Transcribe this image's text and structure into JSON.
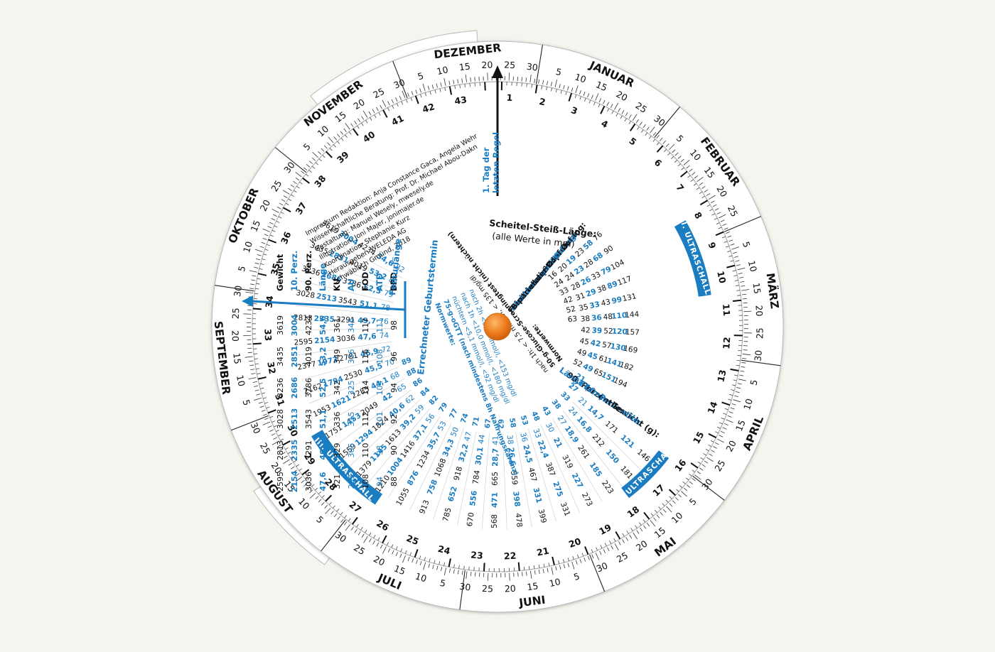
{
  "months": [
    {
      "name": "JANUAR",
      "days": [
        "5",
        "10",
        "15",
        "20",
        "25",
        "30"
      ]
    },
    {
      "name": "FEBRUAR",
      "days": [
        "5",
        "10",
        "15",
        "20",
        "25"
      ]
    },
    {
      "name": "MÄRZ",
      "days": [
        "5",
        "10",
        "15",
        "20",
        "25",
        "30"
      ]
    },
    {
      "name": "APRIL",
      "days": [
        "5",
        "10",
        "15",
        "20",
        "25",
        "30"
      ]
    },
    {
      "name": "MAI",
      "days": [
        "5",
        "10",
        "15",
        "20",
        "25",
        "30"
      ]
    },
    {
      "name": "JUNI",
      "days": [
        "5",
        "10",
        "15",
        "20",
        "25",
        "30"
      ]
    },
    {
      "name": "JULI",
      "days": [
        "5",
        "10",
        "15",
        "20",
        "25",
        "30"
      ]
    },
    {
      "name": "AUGUST",
      "days": [
        "5",
        "10",
        "15",
        "20",
        "25",
        "30"
      ]
    },
    {
      "name": "SEPTEMBER",
      "days": [
        "5",
        "10",
        "15",
        "20",
        "25",
        "30"
      ]
    },
    {
      "name": "OKTOBER",
      "days": [
        "5",
        "10",
        "15",
        "20",
        "25",
        "30"
      ]
    },
    {
      "name": "NOVEMBER",
      "days": [
        "5",
        "10",
        "15",
        "20",
        "25",
        "30"
      ]
    },
    {
      "name": "DEZEMBER",
      "days": [
        "5",
        "10",
        "15",
        "20",
        "25",
        "30"
      ]
    }
  ],
  "weeks": [
    "1",
    "2",
    "3",
    "4",
    "5",
    "6",
    "7",
    "8",
    "9",
    "10",
    "11",
    "12",
    "13",
    "14",
    "15",
    "16",
    "17",
    "18",
    "19",
    "20",
    "21",
    "22",
    "23",
    "24",
    "25",
    "26",
    "27",
    "28",
    "29",
    "30",
    "31",
    "32",
    "33",
    "34",
    "35",
    "36",
    "37",
    "38",
    "39",
    "40",
    "41",
    "42",
    "43"
  ],
  "ultrasound": [
    "I. ULTRASCHALL",
    "II. ULTRASCHALL",
    "III. ULTRASCHALL"
  ],
  "pointer_label": [
    "1. Tag der",
    "letzten Regel"
  ],
  "due_label": "Errechneter Geburtstermin",
  "femur_label": "Femurlänge",
  "impressum": [
    "Impressum Redaktion: Anja Constance Gaca, Angela Wehr",
    "Wissenschaftliche Beratung: Prof. Dr. Michael Abou-Dakn",
    "Gestaltung: Manuel Wesely, mwesely.de",
    "Illustration: Joni Majer, jonimajer.de",
    "Koordination: Stephanie Kurz",
    "Herausgeber: WELEDA AG",
    "Schwäbisch Gmünd, 2018"
  ],
  "ssl_title": "Scheitel-Steiß-Länge:",
  "ssl_sub": "(alle Werte in mm)",
  "ssl_values": [
    "9",
    "16",
    "24",
    "33",
    "42",
    "52",
    "63"
  ],
  "upper_labels": [
    {
      "text": "Kopfumfang:",
      "color": "#111111"
    },
    {
      "text": "Abdomen-Umfang:",
      "color": "#1a7cc1"
    },
    {
      "text": "Fronto-okzipitaler Ø:",
      "color": "#111111"
    },
    {
      "text": "Abdomen quer Ø:",
      "color": "#1a7cc1"
    },
    {
      "text": "Biparietaler Ø:",
      "color": "#111111"
    }
  ],
  "upper_cols": [
    [
      "76",
      "58",
      "23",
      "19",
      "20"
    ],
    [
      "90",
      "68",
      "28",
      "23",
      "24"
    ],
    [
      "104",
      "79",
      "33",
      "26",
      "28"
    ],
    [
      "117",
      "89",
      "38",
      "29",
      "31"
    ],
    [
      "131",
      "99",
      "43",
      "33",
      "35"
    ],
    [
      "144",
      "110",
      "48",
      "36",
      "38"
    ],
    [
      "157",
      "120",
      "52",
      "39",
      "42"
    ],
    [
      "169",
      "130",
      "57",
      "42",
      "45"
    ],
    [
      "182",
      "141",
      "61",
      "45",
      "49"
    ],
    [
      "194",
      "151",
      "65",
      "49",
      "52"
    ]
  ],
  "right_labels": [
    {
      "text": "Gewicht (g):",
      "color": "#111111"
    },
    {
      "text": "10. Perzentile:",
      "color": "#1a7cc1"
    },
    {
      "text": "90. Perzentile:",
      "color": "#111111"
    },
    {
      "text": "Länge (cm):",
      "color": "#1a7cc1"
    },
    {
      "text": "FL:",
      "color": "#1a7cc1"
    }
  ],
  "right_cols": [
    [
      "146",
      "121",
      "171",
      "14,7",
      "21"
    ],
    [
      "181",
      "150",
      "212",
      "16,8",
      "24"
    ],
    [
      "223",
      "185",
      "261",
      "18,9",
      "27"
    ],
    [
      "273",
      "227",
      "319",
      "21",
      "30"
    ],
    [
      "331",
      "275",
      "387",
      "22,4",
      "33"
    ],
    [
      "399",
      "331",
      "467",
      "24,5",
      "36"
    ],
    [
      "478",
      "398",
      "559",
      "26,6",
      "38"
    ],
    [
      "568",
      "471",
      "665",
      "28,7",
      "41"
    ],
    [
      "670",
      "556",
      "784",
      "30,1",
      "44"
    ],
    [
      "785",
      "652",
      "918",
      "32,2",
      "47"
    ],
    [
      "913",
      "758",
      "1068",
      "34,3",
      "50"
    ],
    [
      "1055",
      "876",
      "1234",
      "35,7",
      "53"
    ],
    [
      "1210",
      "1004",
      "1416",
      "37,1",
      "56"
    ],
    [
      "1379",
      "1145",
      "1613",
      "39,2",
      "59"
    ],
    [
      "1559",
      "1294",
      "1824",
      "40,6",
      "62"
    ],
    [
      "1751",
      "1453",
      "2049",
      "42",
      "65"
    ],
    [
      "1953",
      "1621",
      "2285",
      "44,1",
      "68"
    ],
    [
      "2162",
      "1794",
      "2530",
      "45,5",
      "70"
    ],
    [
      "2377",
      "1973",
      "2781",
      "46,9",
      "72"
    ],
    [
      "2595",
      "2154",
      "3036",
      "47,6",
      "74"
    ],
    [
      "2813",
      "2335",
      "3291",
      "49,7",
      "76"
    ],
    [
      "3028",
      "2513",
      "3543",
      "51,1",
      "78"
    ],
    [
      "3236",
      "2686",
      "3786",
      "52,5",
      "79"
    ],
    [
      "3435",
      "2851",
      "4019",
      "53,2",
      "81"
    ],
    [
      "3619",
      "3004",
      "4234",
      "54,6",
      "82"
    ]
  ],
  "left_labels": [
    {
      "text": "Gewicht",
      "color": "#111111"
    },
    {
      "text": "10. Perz.",
      "color": "#1a7cc1"
    },
    {
      "text": "90. Perz.",
      "color": "#111111"
    },
    {
      "text": "Länge",
      "color": "#1a7cc1"
    },
    {
      "text": "KU",
      "color": "#111111"
    },
    {
      "text": "AU",
      "color": "#1a7cc1"
    },
    {
      "text": "FOD",
      "color": "#111111"
    },
    {
      "text": "ATD",
      "color": "#1a7cc1"
    },
    {
      "text": "BPD",
      "color": "#111111"
    }
  ],
  "left_cols": [
    [
      "3619",
      "3004",
      "4234",
      "54,6",
      "361",
      "346",
      "117",
      "111",
      "98"
    ],
    [
      "3435",
      "2851",
      "4019",
      "53,2",
      "349",
      "336",
      "116",
      "108",
      "96"
    ],
    [
      "3236",
      "2686",
      "3786",
      "52,5",
      "342",
      "325",
      "114",
      "104",
      "94"
    ],
    [
      "3028",
      "2513",
      "3543",
      "51,1",
      "336",
      "315",
      "112",
      "101",
      "92"
    ],
    [
      "2813",
      "2335",
      "3291",
      "49,7",
      "329",
      "305",
      "110",
      "98",
      "90"
    ],
    [
      "2595",
      "2154",
      "3036",
      "47,6",
      "321",
      "295",
      "108",
      "94",
      "88"
    ]
  ],
  "lower_blue": [
    "21",
    "27",
    "33",
    "38",
    "43",
    "48",
    "53",
    "58",
    "62",
    "67",
    "71",
    "74",
    "77",
    "79",
    "82",
    "84",
    "86",
    "88",
    "89"
  ],
  "norm_inner": [
    "Normwerte:",
    "75-g-oGTT (nach mindestens 8h Nahrungskarenz)",
    "nüchtern  <5,1 mmol/l,  <92 mg/dl",
    "nach 1h  <10,0 mmol/l,  <180 mg/dl",
    "nach 2h  <8,5 mmol/l,  <153 mg/dl"
  ],
  "norm_outer": [
    "Normwerte:",
    "50-g-Glucose-Screeningtest (nicht nüchtern)",
    "nach 1h: < 7,5 mmol/l, < 135 mg/dl"
  ],
  "colors": {
    "blue": "#1a7cc1",
    "black": "#111111",
    "knob": "#ec7a1c",
    "disc": "#ffffff"
  }
}
